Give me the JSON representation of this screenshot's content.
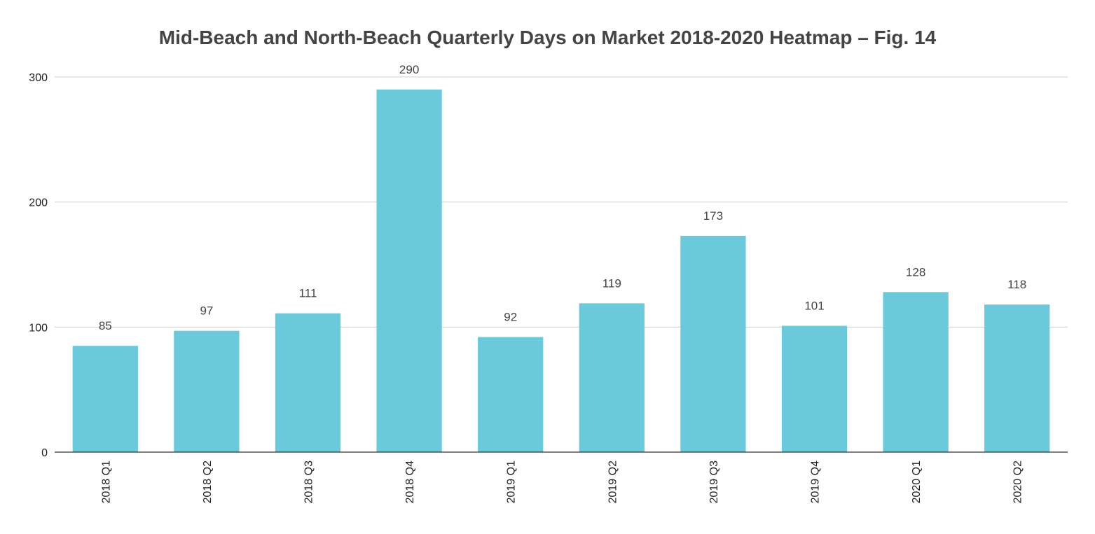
{
  "chart_data": {
    "type": "bar",
    "title": "Mid-Beach and North-Beach Quarterly Days on Market 2018-2020 Heatmap – Fig. 14",
    "xlabel": "",
    "ylabel": "",
    "categories": [
      "2018 Q1",
      "2018 Q2",
      "2018 Q3",
      "2018 Q4",
      "2019 Q1",
      "2019 Q2",
      "2019 Q3",
      "2019 Q4",
      "2020 Q1",
      "2020 Q2"
    ],
    "values": [
      85,
      97,
      111,
      290,
      92,
      119,
      173,
      101,
      128,
      118
    ],
    "data_labels": [
      "85",
      "97",
      "111",
      "290",
      "92",
      "119",
      "173",
      "101",
      "128",
      "118"
    ],
    "ylim": [
      0,
      300
    ],
    "yticks": [
      0,
      100,
      200,
      300
    ],
    "ytick_labels": [
      "0",
      "100",
      "200",
      "300"
    ],
    "grid": true,
    "legend": "none",
    "colors": {
      "bar": "#6AC9DB",
      "grid": "#d0d0d0",
      "axis": "#333333"
    }
  }
}
